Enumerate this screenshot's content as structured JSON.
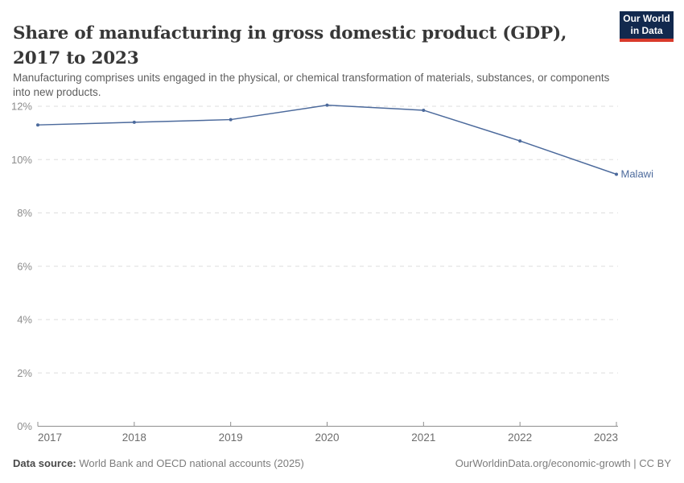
{
  "header": {
    "title": "Share of manufacturing in gross domestic product (GDP), 2017 to 2023",
    "subtitle": "Manufacturing comprises units engaged in the physical, or chemical transformation of materials, substances, or components into new products."
  },
  "logo": {
    "line1": "Our World",
    "line2": "in Data",
    "bg_color": "#12294e",
    "stripe_color": "#d93a2b",
    "text_color": "#ffffff"
  },
  "chart_data": {
    "type": "line",
    "x": [
      2017,
      2018,
      2019,
      2020,
      2021,
      2022,
      2023
    ],
    "series": [
      {
        "name": "Malawi",
        "color": "#4C6A9C",
        "values": [
          11.3,
          11.4,
          11.5,
          12.04,
          11.85,
          10.7,
          9.45
        ]
      }
    ],
    "title": "Share of manufacturing in gross domestic product (GDP), 2017 to 2023",
    "xlabel": "",
    "ylabel": "",
    "ylim": [
      0,
      12
    ],
    "yticks": [
      0,
      2,
      4,
      6,
      8,
      10,
      12
    ],
    "ytick_suffix": "%",
    "xtick_labels": [
      "2017",
      "2018",
      "2019",
      "2020",
      "2021",
      "2022",
      "2023"
    ],
    "grid": "horizontal-dashed",
    "legend_position": "end-of-line-label",
    "entity_label": "Malawi",
    "colors": {
      "line": "#4C6A9C",
      "gridline": "#dddddd",
      "axis": "#8f8f8f",
      "ytick_text": "#8c8c8c",
      "xtick_text": "#6d6d6d"
    }
  },
  "footer": {
    "datasource_label": "Data source:",
    "datasource_text": "World Bank and OECD national accounts (2025)",
    "credit_text": "OurWorldinData.org/economic-growth | CC BY"
  }
}
